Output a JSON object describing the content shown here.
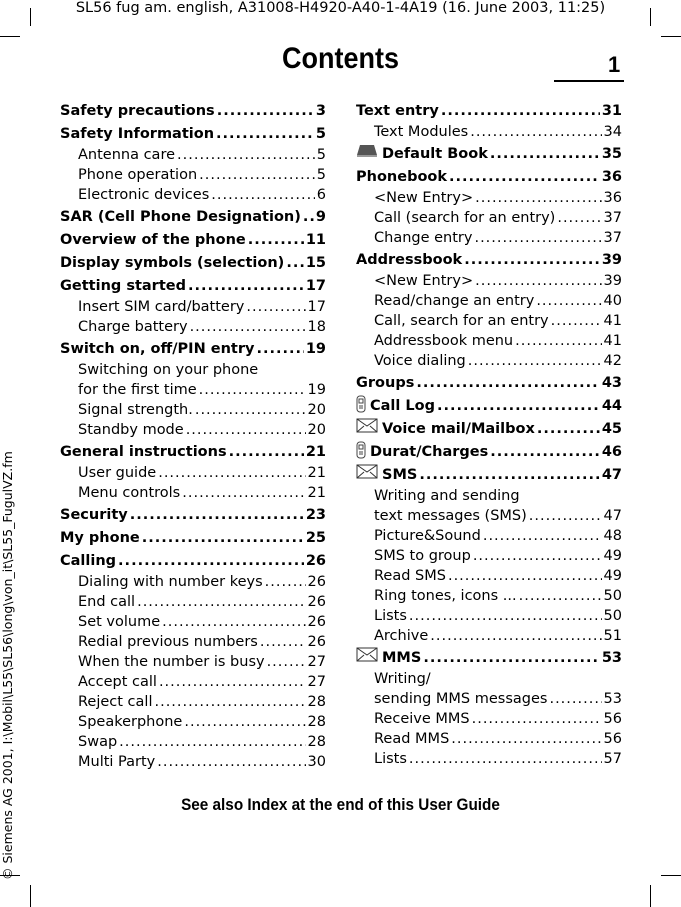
{
  "header": "SL56 fug am. english, A31008-H4920-A40-1-4A19 (16. June 2003, 11:25)",
  "title": "Contents",
  "page": "1",
  "side": "© Siemens AG 2001, I:\\Mobil\\L55\\SL56\\long\\von_it\\SL55_FugulVZ.fm",
  "footer": "See also Index at the end of this User Guide",
  "left": [
    {
      "t": "Safety precautions",
      "p": "3",
      "h": true
    },
    {
      "t": "Safety Information",
      "p": "5",
      "h": true
    },
    {
      "t": "Antenna care",
      "p": "5"
    },
    {
      "t": "Phone operation",
      "p": "5"
    },
    {
      "t": "Electronic devices",
      "p": "6"
    },
    {
      "t": "SAR (Cell Phone Designation)",
      "p": "9",
      "h": true
    },
    {
      "t": "Overview of the phone",
      "p": "11",
      "h": true
    },
    {
      "t": "Display symbols (selection)",
      "p": "15",
      "h": true
    },
    {
      "t": "Getting started",
      "p": "17",
      "h": true
    },
    {
      "t": "Insert SIM card/battery",
      "p": "17"
    },
    {
      "t": "Charge battery",
      "p": "18"
    },
    {
      "t": "Switch on, off/PIN entry",
      "p": "19",
      "h": true
    },
    {
      "t": "Switching on your phone",
      "p": ""
    },
    {
      "t": "for the first time",
      "p": "19"
    },
    {
      "t": "Signal strength.",
      "p": "20"
    },
    {
      "t": "Standby mode",
      "p": "20"
    },
    {
      "t": "General instructions",
      "p": "21",
      "h": true
    },
    {
      "t": "User guide",
      "p": "21"
    },
    {
      "t": "Menu controls",
      "p": "21"
    },
    {
      "t": "Security",
      "p": "23",
      "h": true
    },
    {
      "t": "My phone",
      "p": "25",
      "h": true
    },
    {
      "t": "Calling",
      "p": "26",
      "h": true
    },
    {
      "t": "Dialing with number keys",
      "p": "26"
    },
    {
      "t": "End call",
      "p": "26"
    },
    {
      "t": "Set volume",
      "p": "26"
    },
    {
      "t": "Redial previous numbers",
      "p": "26"
    },
    {
      "t": "When the number is busy",
      "p": "27"
    },
    {
      "t": "Accept call",
      "p": "27"
    },
    {
      "t": "Reject call",
      "p": "28"
    },
    {
      "t": "Speakerphone",
      "p": "28"
    },
    {
      "t": "Swap",
      "p": "28"
    },
    {
      "t": "Multi Party",
      "p": "30"
    }
  ],
  "right": [
    {
      "t": "Text entry",
      "p": "31",
      "h": true
    },
    {
      "t": "Text Modules",
      "p": "34"
    },
    {
      "t": "Default Book",
      "p": "35",
      "h": true,
      "icon": "book-icon"
    },
    {
      "t": "Phonebook",
      "p": "36",
      "h": true
    },
    {
      "t": "<New Entry>",
      "p": "36"
    },
    {
      "t": "Call (search for an entry)",
      "p": "37"
    },
    {
      "t": "Change entry",
      "p": "37"
    },
    {
      "t": "Addressbook",
      "p": "39",
      "h": true
    },
    {
      "t": "<New Entry>",
      "p": "39"
    },
    {
      "t": "Read/change an entry",
      "p": "40"
    },
    {
      "t": "Call, search for an entry",
      "p": "41"
    },
    {
      "t": "Addressbook menu",
      "p": "41"
    },
    {
      "t": "Voice dialing",
      "p": "42"
    },
    {
      "t": "Groups",
      "p": "43",
      "h": true
    },
    {
      "t": "Call Log",
      "p": "44",
      "h": true,
      "icon": "phone-icon"
    },
    {
      "t": "Voice mail/Mailbox",
      "p": "45",
      "h": true,
      "icon": "envelope-icon"
    },
    {
      "t": "Durat/Charges",
      "p": "46",
      "h": true,
      "icon": "phone-icon"
    },
    {
      "t": "SMS",
      "p": "47",
      "h": true,
      "icon": "envelope-icon"
    },
    {
      "t": "Writing and sending",
      "p": ""
    },
    {
      "t": "text messages (SMS)",
      "p": "47"
    },
    {
      "t": "Picture&Sound",
      "p": "48"
    },
    {
      "t": "SMS to group",
      "p": "49"
    },
    {
      "t": "Read SMS",
      "p": "49"
    },
    {
      "t": "Ring tones, icons ...",
      "p": "50"
    },
    {
      "t": "Lists",
      "p": "50"
    },
    {
      "t": "Archive",
      "p": "51"
    },
    {
      "t": "MMS",
      "p": "53",
      "h": true,
      "icon": "envelope-icon"
    },
    {
      "t": "Writing/",
      "p": ""
    },
    {
      "t": "sending MMS messages",
      "p": "53"
    },
    {
      "t": "Receive MMS",
      "p": "56"
    },
    {
      "t": "Read MMS",
      "p": "56"
    },
    {
      "t": "Lists",
      "p": "57"
    }
  ]
}
